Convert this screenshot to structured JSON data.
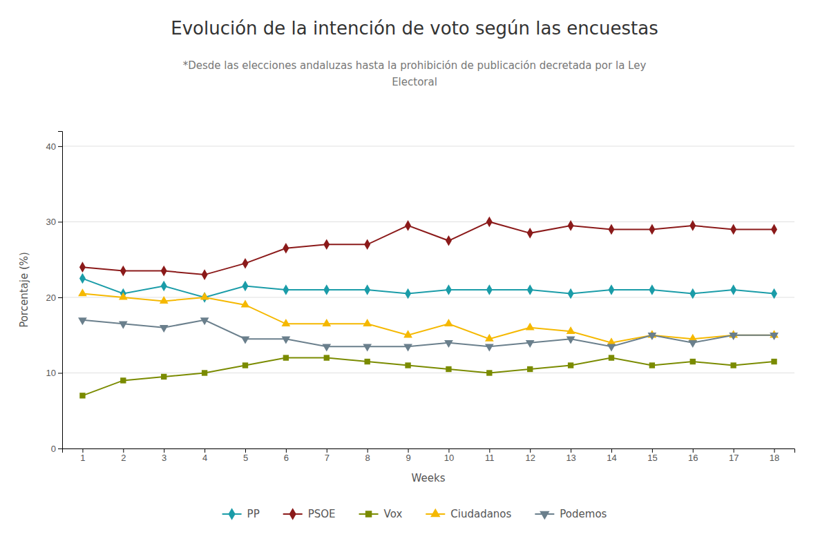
{
  "chart_data": {
    "type": "line",
    "title": "Evolución de la intención de voto según las encuestas",
    "subtitle": [
      "*Desde las elecciones andaluzas hasta la prohibición de publicación decretada por la Ley",
      "Electoral"
    ],
    "x_label": "Weeks",
    "y_label": "Porcentaje (%)",
    "x": [
      1,
      2,
      3,
      4,
      5,
      6,
      7,
      8,
      9,
      10,
      11,
      12,
      13,
      14,
      15,
      16,
      17,
      18
    ],
    "series": [
      {
        "name": "PP",
        "color": "#1a9ca8",
        "marker": "diamond",
        "values": [
          22.5,
          20.5,
          21.5,
          20.0,
          21.5,
          21.0,
          21.0,
          21.0,
          20.5,
          21.0,
          21.0,
          21.0,
          20.5,
          21.0,
          21.0,
          20.5,
          21.0,
          20.5
        ]
      },
      {
        "name": "PSOE",
        "color": "#8b1a1a",
        "marker": "diamond",
        "values": [
          24.0,
          23.5,
          23.5,
          23.0,
          24.5,
          26.5,
          27.0,
          27.0,
          29.5,
          27.5,
          30.0,
          28.5,
          29.5,
          29.0,
          29.0,
          29.5,
          29.0,
          29.0
        ]
      },
      {
        "name": "Vox",
        "color": "#7a8b00",
        "marker": "square",
        "values": [
          7.0,
          9.0,
          9.5,
          10.0,
          11.0,
          12.0,
          12.0,
          11.5,
          11.0,
          10.5,
          10.0,
          10.5,
          11.0,
          12.0,
          11.0,
          11.5,
          11.0,
          11.5
        ]
      },
      {
        "name": "Ciudadanos",
        "color": "#f5b800",
        "marker": "triangle-up",
        "values": [
          20.5,
          20.0,
          19.5,
          20.0,
          19.0,
          16.5,
          16.5,
          16.5,
          15.0,
          16.5,
          14.5,
          16.0,
          15.5,
          14.0,
          15.0,
          14.5,
          15.0,
          15.0
        ]
      },
      {
        "name": "Podemos",
        "color": "#6a7f8c",
        "marker": "triangle-down",
        "values": [
          17.0,
          16.5,
          16.0,
          17.0,
          14.5,
          14.5,
          13.5,
          13.5,
          13.5,
          14.0,
          13.5,
          14.0,
          14.5,
          13.5,
          15.0,
          14.0,
          15.0,
          15.0
        ]
      }
    ],
    "xlim": [
      0.5,
      18.5
    ],
    "xticks": [
      1,
      2,
      3,
      4,
      5,
      6,
      7,
      8,
      9,
      10,
      11,
      12,
      13,
      14,
      15,
      16,
      17,
      18
    ],
    "ylim": [
      0,
      42
    ],
    "yticks": [
      0,
      10,
      20,
      30,
      40
    ],
    "grid": true,
    "legend": "bottom"
  }
}
